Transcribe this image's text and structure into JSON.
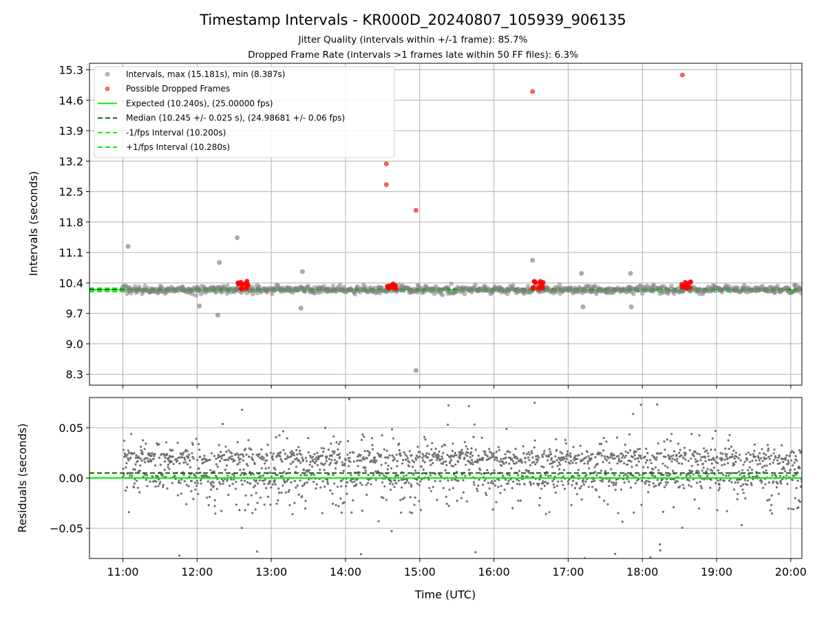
{
  "chart_data": {
    "title": "Timestamp Intervals - KR000D_20240807_105939_906135",
    "subtitle_1": "Jitter Quality (intervals within +/-1 frame): 85.7%",
    "subtitle_2": "Dropped Frame Rate (intervals >1 frames late within 50 FF files): 6.3%",
    "xlabel": "Time (UTC)",
    "x_ticks": [
      "11:00",
      "12:00",
      "13:00",
      "14:00",
      "15:00",
      "16:00",
      "17:00",
      "18:00",
      "19:00",
      "20:00"
    ],
    "xlim_hours": [
      10.55,
      20.15
    ],
    "grid": true,
    "top_panel": {
      "type": "scatter",
      "ylabel": "Intervals (seconds)",
      "ylim": [
        8.05,
        15.45
      ],
      "y_ticks": [
        8.3,
        9.0,
        9.7,
        10.4,
        11.1,
        11.8,
        12.5,
        13.2,
        13.9,
        14.6,
        15.3
      ],
      "y_tick_labels": [
        "8.3",
        "9.0",
        "9.7",
        "10.4",
        "11.1",
        "11.8",
        "12.5",
        "13.2",
        "13.9",
        "14.6",
        "15.3"
      ],
      "expected_interval": 10.24,
      "median_interval": 10.245,
      "minus_fps_interval": 10.2,
      "plus_fps_interval": 10.28,
      "legend_position": "top-left",
      "legend": [
        {
          "label": "Intervals, max (15.181s), min (8.387s)",
          "style": "marker",
          "color": "#808080"
        },
        {
          "label": "Possible Dropped Frames",
          "style": "marker",
          "color": "#ff0000"
        },
        {
          "label": "Expected (10.240s), (25.00000 fps)",
          "style": "solid",
          "color": "#00ee00"
        },
        {
          "label": "Median (10.245 +/- 0.025 s), (24.98681 +/- 0.06 fps)",
          "style": "dashed",
          "color": "#006400"
        },
        {
          "label": "-1/fps Interval (10.200s)",
          "style": "dashed",
          "color": "#00ee00"
        },
        {
          "label": "+1/fps Interval (10.280s)",
          "style": "dashed",
          "color": "#00ee00"
        }
      ],
      "notable_intervals": [
        {
          "x": 11.07,
          "y": 11.24
        },
        {
          "x": 12.03,
          "y": 9.87
        },
        {
          "x": 12.28,
          "y": 9.66
        },
        {
          "x": 12.3,
          "y": 10.87
        },
        {
          "x": 12.54,
          "y": 11.44
        },
        {
          "x": 13.4,
          "y": 9.82
        },
        {
          "x": 13.42,
          "y": 10.66
        },
        {
          "x": 14.95,
          "y": 8.387
        },
        {
          "x": 16.52,
          "y": 10.92
        },
        {
          "x": 17.2,
          "y": 9.85
        },
        {
          "x": 17.18,
          "y": 10.62
        },
        {
          "x": 17.85,
          "y": 9.85
        },
        {
          "x": 17.84,
          "y": 10.62
        }
      ],
      "dropped_frames": [
        {
          "x": 14.55,
          "y": 13.14
        },
        {
          "x": 14.55,
          "y": 12.66
        },
        {
          "x": 14.95,
          "y": 12.07
        },
        {
          "x": 16.52,
          "y": 14.8
        },
        {
          "x": 18.54,
          "y": 15.181
        }
      ],
      "dropped_frame_clusters": [
        {
          "x_start": 12.55,
          "x_end": 12.7
        },
        {
          "x_start": 14.55,
          "x_end": 14.7
        },
        {
          "x_start": 16.52,
          "x_end": 16.67
        },
        {
          "x_start": 18.52,
          "x_end": 18.67
        }
      ]
    },
    "bottom_panel": {
      "type": "scatter",
      "ylabel": "Residuals (seconds)",
      "ylim": [
        -0.08,
        0.08
      ],
      "y_ticks": [
        -0.05,
        0.0,
        0.05
      ],
      "y_tick_labels": [
        "−0.05",
        "0.00",
        "0.05"
      ],
      "expected_residual": 0.0,
      "median_residual": 0.005
    }
  }
}
